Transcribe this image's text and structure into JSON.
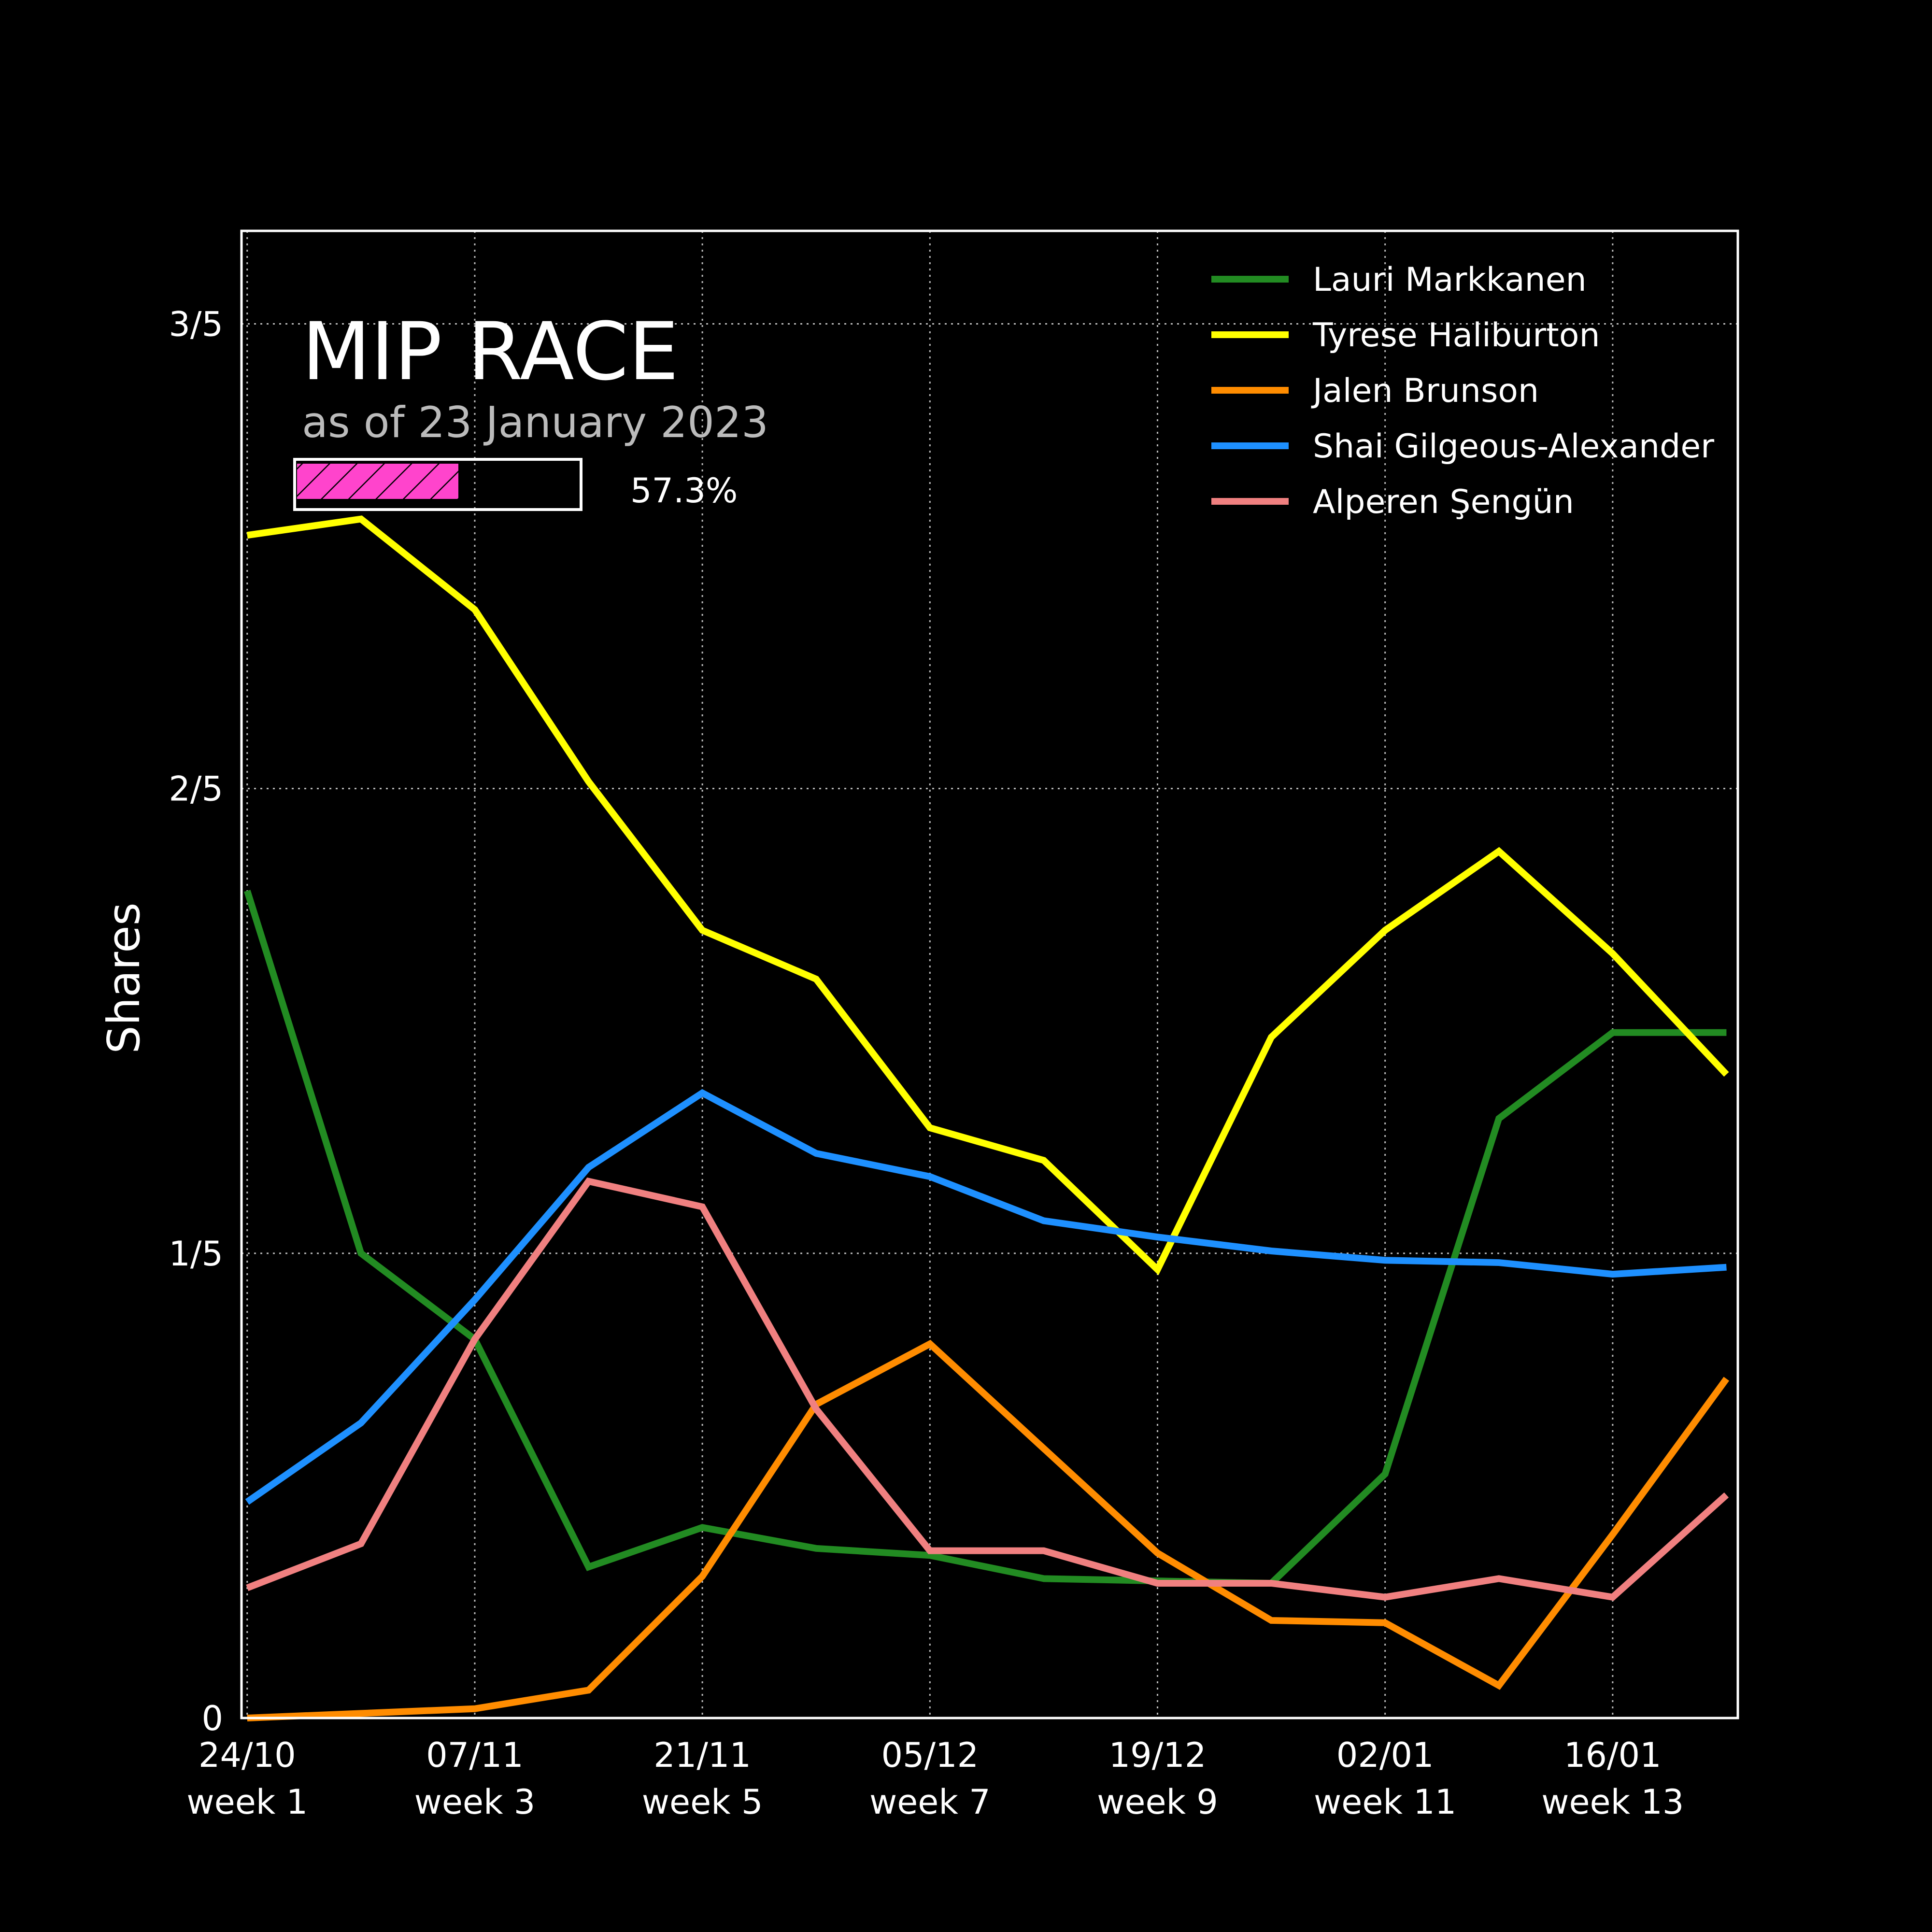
{
  "chart_data": {
    "type": "line",
    "title": "MIP RACE",
    "subtitle": "as of 23 January 2023",
    "progress": {
      "value": 0.573,
      "label": "57.3%"
    },
    "ylabel": "Shares",
    "xlabel": "",
    "ylim": [
      0,
      0.64
    ],
    "xlim": [
      0.95,
      14.1
    ],
    "y_ticks": [
      {
        "value": 0,
        "label": "0"
      },
      {
        "value": 0.2,
        "label": "1/5"
      },
      {
        "value": 0.4,
        "label": "2/5"
      },
      {
        "value": 0.6,
        "label": "3/5"
      }
    ],
    "x_ticks": [
      {
        "value": 1,
        "line1": "24/10",
        "line2": "week 1"
      },
      {
        "value": 3,
        "line1": "07/11",
        "line2": "week 3"
      },
      {
        "value": 5,
        "line1": "21/11",
        "line2": "week 5"
      },
      {
        "value": 7,
        "line1": "05/12",
        "line2": "week 7"
      },
      {
        "value": 9,
        "line1": "19/12",
        "line2": "week 9"
      },
      {
        "value": 11,
        "line1": "02/01",
        "line2": "week 11"
      },
      {
        "value": 13,
        "line1": "16/01",
        "line2": "week 13"
      }
    ],
    "x": [
      1,
      2,
      3,
      4,
      5,
      6,
      7,
      8,
      9,
      10,
      11,
      12,
      13,
      14
    ],
    "grid": true,
    "legend_position": "top-right",
    "series": [
      {
        "name": "Lauri Markkanen",
        "color": "#228b22",
        "values": [
          0.356,
          0.2,
          0.163,
          0.065,
          0.082,
          0.073,
          0.07,
          0.06,
          0.059,
          0.058,
          0.105,
          0.258,
          0.295,
          0.295
        ]
      },
      {
        "name": "Tyrese Haliburton",
        "color": "#ffff00",
        "values": [
          0.509,
          0.516,
          0.477,
          0.403,
          0.339,
          0.318,
          0.254,
          0.24,
          0.193,
          0.293,
          0.339,
          0.373,
          0.329,
          0.277
        ]
      },
      {
        "name": "Jalen Brunson",
        "color": "#ff8c00",
        "values": [
          0.0,
          0.002,
          0.004,
          0.012,
          0.061,
          0.135,
          0.161,
          0.116,
          0.071,
          0.042,
          0.041,
          0.014,
          0.079,
          0.146
        ]
      },
      {
        "name": "Shai Gilgeous-Alexander",
        "color": "#1e90ff",
        "values": [
          0.093,
          0.127,
          0.18,
          0.237,
          0.269,
          0.243,
          0.233,
          0.214,
          0.207,
          0.201,
          0.197,
          0.196,
          0.191,
          0.194
        ]
      },
      {
        "name": "Alperen Şengün",
        "color": "#f08080",
        "values": [
          0.056,
          0.075,
          0.163,
          0.231,
          0.22,
          0.133,
          0.072,
          0.072,
          0.058,
          0.058,
          0.052,
          0.06,
          0.052,
          0.096
        ]
      }
    ]
  }
}
